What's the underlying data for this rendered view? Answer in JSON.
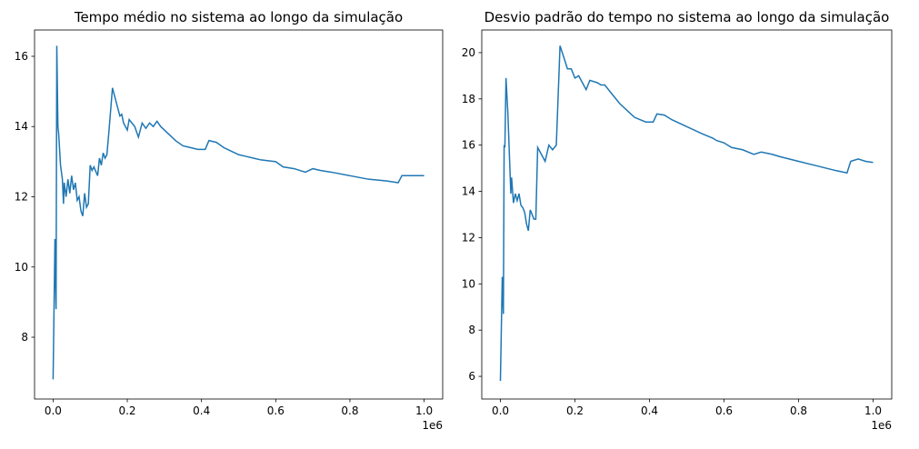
{
  "chart_data": [
    {
      "type": "line",
      "title": "Tempo médio no sistema ao longo da simulação",
      "color": "#1f77b4",
      "x": [
        0,
        0.005,
        0.008,
        0.01,
        0.013,
        0.015,
        0.02,
        0.025,
        0.028,
        0.03,
        0.035,
        0.04,
        0.045,
        0.05,
        0.055,
        0.06,
        0.065,
        0.07,
        0.075,
        0.08,
        0.085,
        0.09,
        0.095,
        0.1,
        0.105,
        0.11,
        0.12,
        0.125,
        0.13,
        0.135,
        0.14,
        0.145,
        0.15,
        0.16,
        0.17,
        0.18,
        0.185,
        0.19,
        0.2,
        0.205,
        0.22,
        0.23,
        0.24,
        0.25,
        0.26,
        0.27,
        0.28,
        0.29,
        0.3,
        0.31,
        0.33,
        0.35,
        0.37,
        0.39,
        0.41,
        0.42,
        0.44,
        0.46,
        0.48,
        0.5,
        0.52,
        0.54,
        0.56,
        0.6,
        0.62,
        0.65,
        0.68,
        0.7,
        0.72,
        0.75,
        0.8,
        0.85,
        0.9,
        0.93,
        0.94,
        0.97,
        1.0
      ],
      "values": [
        6.8,
        10.8,
        8.8,
        16.3,
        14,
        13.8,
        12.9,
        12.5,
        11.8,
        12.4,
        12.0,
        12.5,
        12.1,
        12.6,
        12.2,
        12.4,
        11.9,
        12.0,
        11.6,
        11.45,
        12.1,
        11.7,
        11.8,
        12.9,
        12.75,
        12.85,
        12.6,
        13.1,
        12.9,
        13.25,
        13.1,
        13.2,
        13.8,
        15.1,
        14.7,
        14.3,
        14.35,
        14.1,
        13.9,
        14.2,
        14.0,
        13.7,
        14.1,
        13.95,
        14.1,
        14.0,
        14.15,
        14.0,
        13.9,
        13.8,
        13.6,
        13.45,
        13.4,
        13.35,
        13.35,
        13.6,
        13.55,
        13.4,
        13.3,
        13.2,
        13.15,
        13.1,
        13.05,
        13.0,
        12.85,
        12.8,
        12.7,
        12.8,
        12.75,
        12.7,
        12.6,
        12.5,
        12.45,
        12.4,
        12.6,
        12.6,
        12.6
      ],
      "xlim": [
        -0.05,
        1.05
      ],
      "xticks": [
        {
          "value": 0,
          "label": "0.0"
        },
        0.2,
        0.4,
        0.6,
        0.8,
        {
          "value": 1,
          "label": "1.0"
        }
      ],
      "x_offset_label": "1e6",
      "ylim": [
        6.24,
        16.75
      ],
      "yticks": [
        8,
        10,
        12,
        14,
        16
      ]
    },
    {
      "type": "line",
      "title": "Desvio padrão do tempo no sistema ao longo da simulação",
      "color": "#1f77b4",
      "x": [
        0,
        0.005,
        0.008,
        0.01,
        0.012,
        0.015,
        0.02,
        0.025,
        0.028,
        0.03,
        0.035,
        0.04,
        0.045,
        0.05,
        0.055,
        0.06,
        0.065,
        0.07,
        0.075,
        0.08,
        0.09,
        0.095,
        0.1,
        0.11,
        0.12,
        0.13,
        0.14,
        0.15,
        0.16,
        0.17,
        0.18,
        0.19,
        0.2,
        0.21,
        0.22,
        0.23,
        0.24,
        0.26,
        0.27,
        0.28,
        0.3,
        0.32,
        0.34,
        0.36,
        0.39,
        0.41,
        0.42,
        0.44,
        0.46,
        0.5,
        0.54,
        0.57,
        0.58,
        0.6,
        0.62,
        0.65,
        0.68,
        0.7,
        0.73,
        0.75,
        0.8,
        0.85,
        0.9,
        0.93,
        0.94,
        0.96,
        0.98,
        1.0
      ],
      "values": [
        5.8,
        10.3,
        8.7,
        16.0,
        15.9,
        18.9,
        17.4,
        15.2,
        13.9,
        14.6,
        13.5,
        13.9,
        13.6,
        13.9,
        13.4,
        13.3,
        13.1,
        12.6,
        12.3,
        13.2,
        12.8,
        12.8,
        15.9,
        15.6,
        15.3,
        16.0,
        15.8,
        16.0,
        20.3,
        19.8,
        19.3,
        19.3,
        18.9,
        19.0,
        18.7,
        18.4,
        18.8,
        18.7,
        18.6,
        18.6,
        18.2,
        17.8,
        17.5,
        17.2,
        17.0,
        17.0,
        17.35,
        17.3,
        17.1,
        16.8,
        16.5,
        16.3,
        16.2,
        16.1,
        15.9,
        15.8,
        15.6,
        15.7,
        15.6,
        15.5,
        15.3,
        15.1,
        14.9,
        14.8,
        15.3,
        15.4,
        15.3,
        15.25
      ],
      "xlim": [
        -0.05,
        1.05
      ],
      "xticks": [
        {
          "value": 0,
          "label": "0.0"
        },
        0.2,
        0.4,
        0.6,
        0.8,
        {
          "value": 1,
          "label": "1.0"
        }
      ],
      "x_offset_label": "1e6",
      "ylim": [
        5.02,
        20.98
      ],
      "yticks": [
        6,
        8,
        10,
        12,
        14,
        16,
        18,
        20
      ]
    }
  ]
}
